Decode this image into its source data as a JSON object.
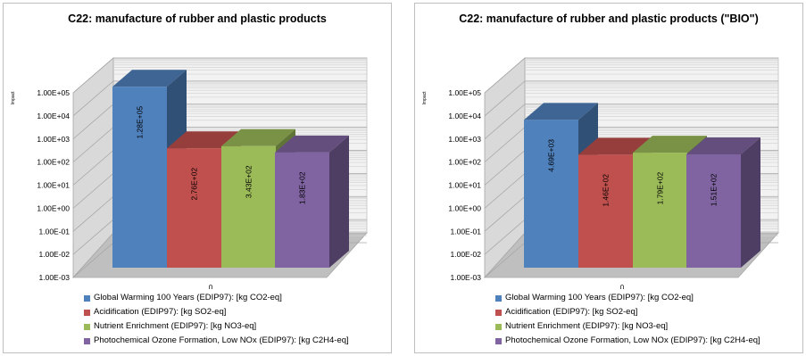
{
  "chart_data": [
    {
      "type": "bar",
      "title": "C22: manufacture of rubber and plastic products",
      "ylabel": "Impact",
      "y_scale": "log",
      "ylim": [
        0.001,
        100000
      ],
      "y_ticks": [
        "1.00E-03",
        "1.00E-02",
        "1.00E-01",
        "1.00E+00",
        "1.00E+01",
        "1.00E+02",
        "1.00E+03",
        "1.00E+04",
        "1.00E+05"
      ],
      "categories": [
        "0"
      ],
      "grid": true,
      "legend_position": "bottom",
      "series": [
        {
          "name": "Global Warming 100 Years (EDIP97): [kg CO2-eq]",
          "values": [
            128000
          ],
          "label": "1.28E+05",
          "color": "#4f81bd"
        },
        {
          "name": "Acidification (EDIP97): [kg SO2-eq]",
          "values": [
            276
          ],
          "label": "2.76E+02",
          "color": "#c0504d"
        },
        {
          "name": "Nutrient Enrichment (EDIP97): [kg NO3-eq]",
          "values": [
            343
          ],
          "label": "3.43E+02",
          "color": "#9bbb59"
        },
        {
          "name": "Photochemical Ozone Formation, Low NOx (EDIP97): [kg C2H4-eq]",
          "values": [
            183
          ],
          "label": "1.83E+02",
          "color": "#8064a2"
        }
      ]
    },
    {
      "type": "bar",
      "title": "C22: manufacture of rubber and plastic products (\"BIO\")",
      "ylabel": "Impact",
      "y_scale": "log",
      "ylim": [
        0.001,
        100000
      ],
      "y_ticks": [
        "1.00E-03",
        "1.00E-02",
        "1.00E-01",
        "1.00E+00",
        "1.00E+01",
        "1.00E+02",
        "1.00E+03",
        "1.00E+04",
        "1.00E+05"
      ],
      "categories": [
        "0"
      ],
      "grid": true,
      "legend_position": "bottom",
      "series": [
        {
          "name": "Global Warming 100 Years (EDIP97): [kg CO2-eq]",
          "values": [
            4690
          ],
          "label": "4.69E+03",
          "color": "#4f81bd"
        },
        {
          "name": "Acidification (EDIP97): [kg SO2-eq]",
          "values": [
            146
          ],
          "label": "1.46E+02",
          "color": "#c0504d"
        },
        {
          "name": "Nutrient Enrichment (EDIP97): [kg NO3-eq]",
          "values": [
            179
          ],
          "label": "1.79E+02",
          "color": "#9bbb59"
        },
        {
          "name": "Photochemical Ozone Formation, Low NOx (EDIP97): [kg C2H4-eq]",
          "values": [
            151
          ],
          "label": "1.51E+02",
          "color": "#8064a2"
        }
      ]
    }
  ]
}
